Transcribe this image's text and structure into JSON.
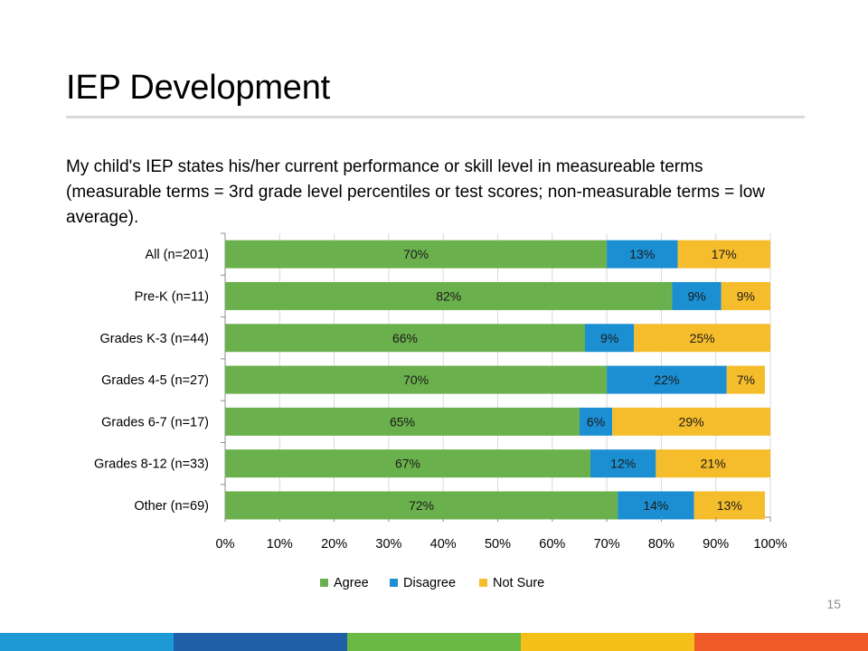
{
  "slide": {
    "title": "IEP Development",
    "question": "My child's IEP states his/her current performance or skill level in measureable terms (measurable terms = 3rd grade level percentiles or test scores; non-measurable terms = low average).",
    "page_number": "15"
  },
  "footer_colors": [
    "#1d9ad6",
    "#1f5fa8",
    "#6ab945",
    "#f5bf1a",
    "#ef5a28"
  ],
  "chart_data": {
    "type": "bar",
    "orientation": "horizontal",
    "stacked": true,
    "categories": [
      "All (n=201)",
      "Pre-K (n=11)",
      "Grades K-3 (n=44)",
      "Grades 4-5 (n=27)",
      "Grades 6-7 (n=17)",
      "Grades 8-12 (n=33)",
      "Other (n=69)"
    ],
    "series": [
      {
        "name": "Agree",
        "color": "#6ab04c",
        "values": [
          70,
          82,
          66,
          70,
          65,
          67,
          72
        ],
        "labels": [
          "70%",
          "82%",
          "66%",
          "70%",
          "65%",
          "67%",
          "72%"
        ]
      },
      {
        "name": "Disagree",
        "color": "#1b8fd2",
        "values": [
          13,
          9,
          9,
          22,
          6,
          12,
          14
        ],
        "labels": [
          "13%",
          "9%",
          "9%",
          "22%",
          "6%",
          "12%",
          "14%"
        ]
      },
      {
        "name": "Not Sure",
        "color": "#f5bc2c",
        "values": [
          17,
          9,
          25,
          7,
          29,
          21,
          13
        ],
        "labels": [
          "17%",
          "9%",
          "25%",
          "7%",
          "29%",
          "21%",
          "13%"
        ]
      }
    ],
    "xlim": [
      0,
      100
    ],
    "xticks": [
      0,
      10,
      20,
      30,
      40,
      50,
      60,
      70,
      80,
      90,
      100
    ],
    "xtick_labels": [
      "0%",
      "10%",
      "20%",
      "30%",
      "40%",
      "50%",
      "60%",
      "70%",
      "80%",
      "90%",
      "100%"
    ],
    "grid": true,
    "legend": "bottom"
  }
}
